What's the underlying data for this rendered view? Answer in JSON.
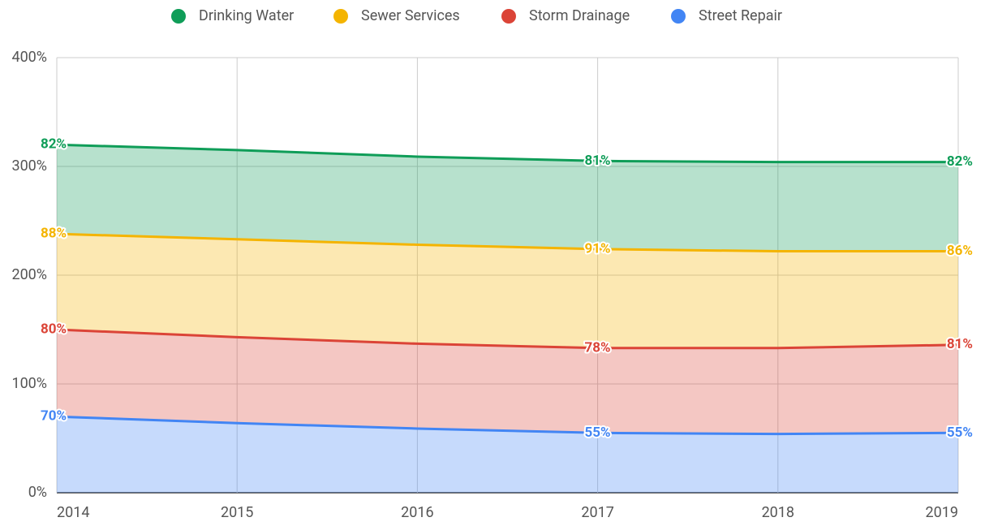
{
  "chart_data": {
    "type": "stacked_area",
    "x": [
      2014,
      2015,
      2016,
      2017,
      2018,
      2019
    ],
    "xlim": [
      2014,
      2019
    ],
    "xticks": [
      2014,
      2015,
      2016,
      2017,
      2018,
      2019
    ],
    "ylim": [
      0,
      400
    ],
    "yticks": [
      {
        "value": 0,
        "label": "0%"
      },
      {
        "value": 100,
        "label": "100%"
      },
      {
        "value": 200,
        "label": "200%"
      },
      {
        "value": 300,
        "label": "300%"
      },
      {
        "value": 400,
        "label": "400%"
      }
    ],
    "grid": true,
    "legend": "top",
    "series": [
      {
        "name": "Drinking Water",
        "color": "#0f9d58",
        "values": [
          82,
          82,
          81,
          81,
          82,
          82
        ],
        "value_labels": [
          "82%",
          null,
          null,
          "81%",
          null,
          "82%"
        ]
      },
      {
        "name": "Sewer Services",
        "color": "#f4b400",
        "values": [
          88,
          90,
          91,
          91,
          89,
          86
        ],
        "value_labels": [
          "88%",
          null,
          null,
          "91%",
          null,
          "86%"
        ]
      },
      {
        "name": "Storm Drainage",
        "color": "#db4437",
        "values": [
          80,
          79,
          78,
          78,
          79,
          81
        ],
        "value_labels": [
          "80%",
          null,
          null,
          "78%",
          null,
          "81%"
        ]
      },
      {
        "name": "Street Repair",
        "color": "#4285f4",
        "values": [
          70,
          64,
          59,
          55,
          54,
          55
        ],
        "value_labels": [
          "70%",
          null,
          null,
          "55%",
          null,
          "55%"
        ]
      }
    ]
  }
}
